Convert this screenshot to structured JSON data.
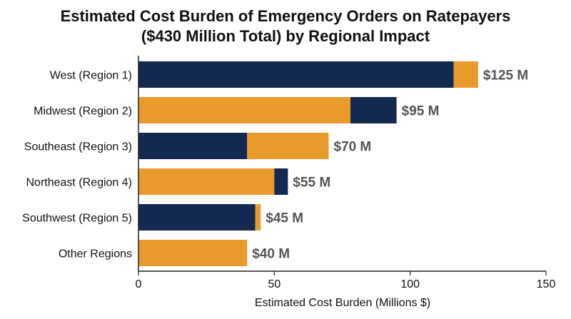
{
  "chart_data": {
    "type": "bar",
    "orientation": "horizontal",
    "stacked": true,
    "title_lines": [
      "Estimated Cost Burden of Emergency Orders on Ratepayers",
      "($430 Million Total) by Regional Impact"
    ],
    "xlabel": "Estimated Cost Burden (Millions $)",
    "ylabel": "",
    "xlim": [
      0,
      150
    ],
    "xticks": [
      "0",
      "50",
      "100",
      "150"
    ],
    "grid": false,
    "legend": "none",
    "categories": [
      "West (Region 1)",
      "Midwest (Region 2)",
      "Southeast (Region 3)",
      "Northeast (Region 4)",
      "Southwest (Region 5)",
      "Other Regions"
    ],
    "segments": [
      [
        {
          "value": 116,
          "color": "#14294F"
        },
        {
          "value": 9,
          "color": "#E99A2C"
        }
      ],
      [
        {
          "value": 78,
          "color": "#E99A2C"
        },
        {
          "value": 17,
          "color": "#14294F"
        }
      ],
      [
        {
          "value": 40,
          "color": "#14294F"
        },
        {
          "value": 30,
          "color": "#E99A2C"
        }
      ],
      [
        {
          "value": 50,
          "color": "#E99A2C"
        },
        {
          "value": 5,
          "color": "#14294F"
        }
      ],
      [
        {
          "value": 43,
          "color": "#14294F"
        },
        {
          "value": 2,
          "color": "#E99A2C"
        }
      ],
      [
        {
          "value": 40,
          "color": "#E99A2C"
        }
      ]
    ],
    "totals": [
      125,
      95,
      70,
      55,
      45,
      40
    ],
    "value_labels": [
      "$125 M",
      "$95 M",
      "$70 M",
      "$55 M",
      "$45 M",
      "$40 M"
    ],
    "colors": {
      "navy": "#14294F",
      "orange": "#E99A2C",
      "axis": "#222222",
      "value_label": "#555555"
    }
  }
}
